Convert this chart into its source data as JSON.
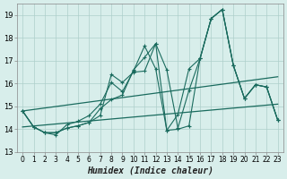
{
  "xlabel": "Humidex (Indice chaleur)",
  "xlim": [
    -0.5,
    23.5
  ],
  "ylim": [
    13.0,
    19.5
  ],
  "yticks": [
    13,
    14,
    15,
    16,
    17,
    18,
    19
  ],
  "xticks": [
    0,
    1,
    2,
    3,
    4,
    5,
    6,
    7,
    8,
    9,
    10,
    11,
    12,
    13,
    14,
    15,
    16,
    17,
    18,
    19,
    20,
    21,
    22,
    23
  ],
  "background_color": "#d8eeeb",
  "grid_color": "#aecfca",
  "line_color": "#1a6b5e",
  "series_marked": [
    [
      14.8,
      14.1,
      13.85,
      13.85,
      14.05,
      14.15,
      14.3,
      14.9,
      15.3,
      15.5,
      16.6,
      17.15,
      17.75,
      16.6,
      14.05,
      15.7,
      17.1,
      18.85,
      19.25,
      16.8,
      15.35,
      15.95,
      15.85,
      14.4
    ],
    [
      14.8,
      14.1,
      13.85,
      13.85,
      14.05,
      14.15,
      14.3,
      14.6,
      16.4,
      16.05,
      16.5,
      16.55,
      17.75,
      13.95,
      14.0,
      14.15,
      17.1,
      18.85,
      19.25,
      16.8,
      15.35,
      15.95,
      15.85,
      14.4
    ],
    [
      14.8,
      14.1,
      13.85,
      13.75,
      14.2,
      14.35,
      14.6,
      15.1,
      16.05,
      15.65,
      16.55,
      17.65,
      16.65,
      13.95,
      14.65,
      16.65,
      17.1,
      18.85,
      19.25,
      16.8,
      15.35,
      15.95,
      15.85,
      14.4
    ]
  ],
  "trend_lines": [
    {
      "x0": 0,
      "y0": 14.8,
      "x1": 23,
      "y1": 16.3
    },
    {
      "x0": 0,
      "y0": 14.1,
      "x1": 23,
      "y1": 15.1
    }
  ]
}
